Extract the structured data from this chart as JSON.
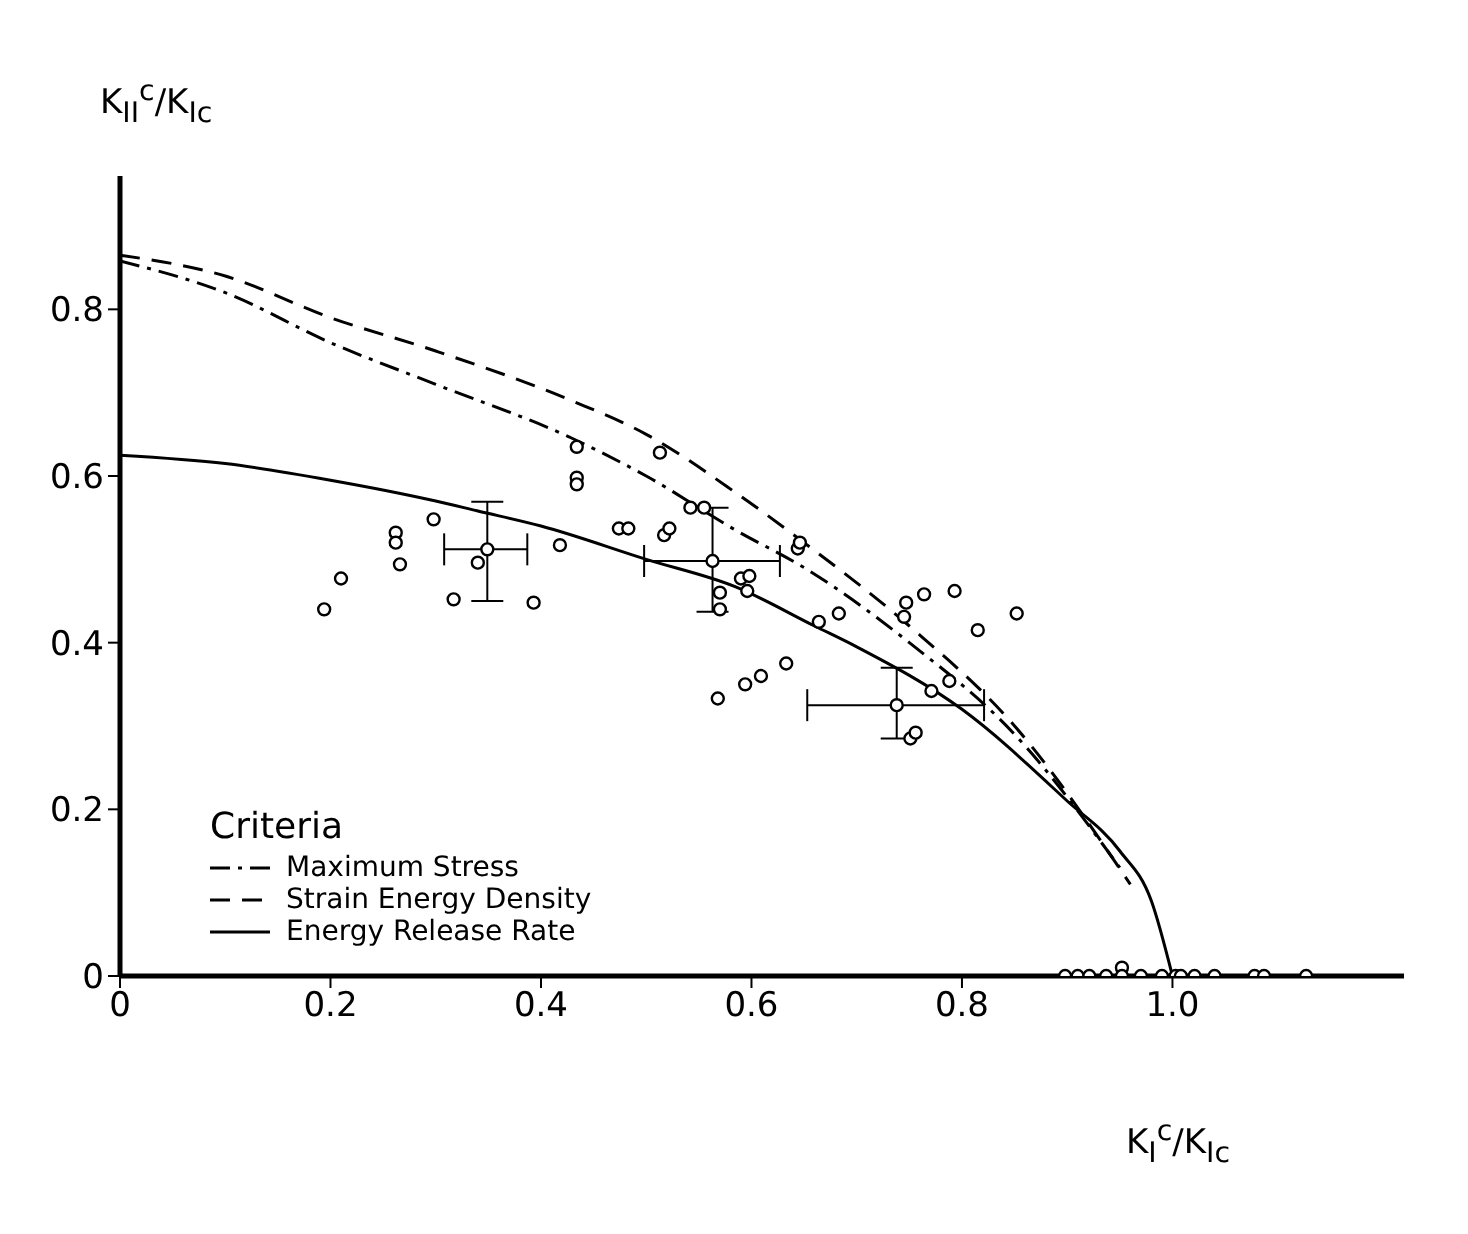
{
  "chart_data": {
    "type": "line",
    "xlabel": "K$_{I}$$^{c}$/K$_{Ic}$",
    "ylabel": "K$_{II}$$^{c}$/K$_{Ic}$",
    "legend_title": "Criteria",
    "legend": "left",
    "grid": false,
    "xlim": [
      0,
      1.22
    ],
    "ylim": [
      0,
      0.96
    ],
    "xticks": [
      0,
      0.2,
      0.4,
      0.6,
      0.8,
      {
        "value": 1,
        "label": "1.0"
      }
    ],
    "yticks": [
      0,
      0.2,
      0.4,
      0.6,
      0.8
    ],
    "series": [
      {
        "name": "Maximum Stress",
        "color": "#000000",
        "line_style": "dashdot",
        "marker": "none",
        "x": [
          0,
          0.1,
          0.2,
          0.3,
          0.43,
          0.5,
          0.585,
          0.65,
          0.75,
          0.85,
          0.95
        ],
        "values": [
          0.858,
          0.82,
          0.76,
          0.71,
          0.645,
          0.6,
          0.535,
          0.49,
          0.4,
          0.29,
          0.13
        ]
      },
      {
        "name": "Strain Energy Density",
        "color": "#000000",
        "line_style": "dashed",
        "marker": "none",
        "x": [
          0,
          0.1,
          0.2,
          0.3,
          0.43,
          0.5,
          0.585,
          0.65,
          0.75,
          0.85,
          0.96
        ],
        "values": [
          0.865,
          0.84,
          0.79,
          0.75,
          0.69,
          0.65,
          0.58,
          0.52,
          0.42,
          0.3,
          0.11
        ]
      },
      {
        "name": "Energy Release Rate",
        "color": "#000000",
        "line_style": "solid",
        "marker": "none",
        "x": [
          0,
          0.1,
          0.2,
          0.3,
          0.34,
          0.4,
          0.5,
          0.585,
          0.66,
          0.7,
          0.8,
          0.9,
          0.95,
          0.98,
          1.0
        ],
        "values": [
          0.625,
          0.615,
          0.595,
          0.57,
          0.558,
          0.54,
          0.5,
          0.467,
          0.42,
          0.395,
          0.32,
          0.21,
          0.15,
          0.09,
          0
        ]
      },
      {
        "type": "scatter",
        "color": "#000000",
        "marker": "circle",
        "x": [
          0.194,
          0.21,
          0.262,
          0.262,
          0.266,
          0.298,
          0.317,
          0.34,
          0.393,
          0.418,
          0.434,
          0.434,
          0.434,
          0.474,
          0.483,
          0.513,
          0.517,
          0.522,
          0.542,
          0.555,
          0.57,
          0.57,
          0.644,
          0.646,
          0.59,
          0.598,
          0.596,
          0.664,
          0.683,
          0.747,
          0.764,
          0.745,
          0.793,
          0.815,
          0.852,
          0.594,
          0.609,
          0.633,
          0.771,
          0.788,
          0.751,
          0.756,
          0.568,
          0.898,
          0.91,
          0.921,
          0.937,
          0.952,
          0.952,
          0.97,
          0.99,
          1.003,
          1.008,
          1.021,
          1.04,
          1.078,
          1.087,
          1.127
        ],
        "values": [
          0.44,
          0.477,
          0.532,
          0.52,
          0.494,
          0.548,
          0.452,
          0.496,
          0.448,
          0.517,
          0.635,
          0.598,
          0.59,
          0.537,
          0.537,
          0.628,
          0.529,
          0.537,
          0.562,
          0.562,
          0.46,
          0.44,
          0.513,
          0.52,
          0.477,
          0.48,
          0.462,
          0.425,
          0.435,
          0.448,
          0.458,
          0.431,
          0.462,
          0.415,
          0.435,
          0.35,
          0.36,
          0.375,
          0.342,
          0.354,
          0.285,
          0.292,
          0.333,
          0,
          0,
          0,
          0,
          0.01,
          0,
          0,
          0,
          0,
          0,
          0,
          0,
          0,
          0,
          0
        ]
      },
      {
        "type": "scatter",
        "color": "#000000",
        "marker": "circle",
        "x": [
          0.349,
          0.563,
          0.738
        ],
        "values": [
          0.512,
          0.498,
          0.325
        ],
        "errors": [
          [
            0.45,
            0.569
          ],
          [
            0.437,
            0.562
          ],
          [
            0.285,
            0.37
          ]
        ],
        "xerrors": [
          [
            0.308,
            0.387
          ],
          [
            0.498,
            0.627
          ],
          [
            0.653,
            0.821
          ]
        ]
      }
    ]
  }
}
